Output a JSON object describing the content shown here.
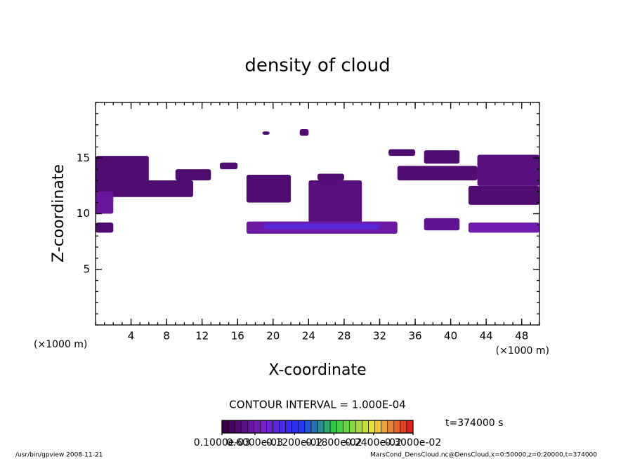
{
  "chart_data": {
    "type": "contour",
    "title": "density of cloud",
    "xlabel": "X-coordinate",
    "ylabel": "Z-coordinate",
    "xunit": "(×1000 m)",
    "yunit": "(×1000 m)",
    "xlim": [
      0,
      50
    ],
    "ylim": [
      0,
      20
    ],
    "xticks": [
      4,
      8,
      12,
      16,
      20,
      24,
      28,
      32,
      36,
      40,
      44,
      48
    ],
    "yticks": [
      5,
      10,
      15
    ],
    "contour_interval": "CONTOUR INTERVAL = 1.000E-04",
    "time_label": "t=374000 s",
    "colormap": [
      "#3a0048",
      "#7a22c0",
      "#2030ff",
      "#30d040",
      "#f0e040",
      "#e02020"
    ],
    "clim": [
      0.1,
      3.0
    ],
    "colorbar_ticks": [
      {
        "value": 0.1,
        "label": "0.1000e-03"
      },
      {
        "value": 0.6,
        "label": "0.6000e-03"
      },
      {
        "value": 1.2,
        "label": "0.1200e-02"
      },
      {
        "value": 1.8,
        "label": "0.1800e-02"
      },
      {
        "value": 2.4,
        "label": "0.2400e-02"
      },
      {
        "value": 3.0,
        "label": "0.3000e-02"
      }
    ],
    "regions": [
      {
        "x": [
          0,
          6
        ],
        "z": [
          12.5,
          15.2
        ],
        "value": 0.3
      },
      {
        "x": [
          0,
          11
        ],
        "z": [
          11.5,
          13
        ],
        "value": 0.3
      },
      {
        "x": [
          0,
          2
        ],
        "z": [
          10,
          12
        ],
        "value": 0.5
      },
      {
        "x": [
          0,
          2
        ],
        "z": [
          8.3,
          9.2
        ],
        "value": 0.3
      },
      {
        "x": [
          9,
          13
        ],
        "z": [
          13,
          14
        ],
        "value": 0.3
      },
      {
        "x": [
          14,
          16
        ],
        "z": [
          14,
          14.6
        ],
        "value": 0.3
      },
      {
        "x": [
          17,
          22
        ],
        "z": [
          11,
          13.5
        ],
        "value": 0.3
      },
      {
        "x": [
          24,
          30
        ],
        "z": [
          9.2,
          13
        ],
        "value": 0.35
      },
      {
        "x": [
          25,
          28
        ],
        "z": [
          13,
          13.6
        ],
        "value": 0.3
      },
      {
        "x": [
          17,
          34
        ],
        "z": [
          8.2,
          9.3
        ],
        "value": 0.55
      },
      {
        "x": [
          19,
          32
        ],
        "z": [
          8.6,
          9.1
        ],
        "value": 0.9
      },
      {
        "x": [
          37,
          41
        ],
        "z": [
          8.5,
          9.6
        ],
        "value": 0.45
      },
      {
        "x": [
          42,
          50
        ],
        "z": [
          8.3,
          9.2
        ],
        "value": 0.6
      },
      {
        "x": [
          42,
          50
        ],
        "z": [
          10.8,
          12.5
        ],
        "value": 0.3
      },
      {
        "x": [
          43,
          50
        ],
        "z": [
          12.5,
          15.3
        ],
        "value": 0.35
      },
      {
        "x": [
          34,
          43
        ],
        "z": [
          13,
          14.3
        ],
        "value": 0.3
      },
      {
        "x": [
          37,
          41
        ],
        "z": [
          14.5,
          15.7
        ],
        "value": 0.3
      },
      {
        "x": [
          33,
          36
        ],
        "z": [
          15.2,
          15.8
        ],
        "value": 0.3
      },
      {
        "x": [
          23,
          24
        ],
        "z": [
          17,
          17.6
        ],
        "value": 0.3
      },
      {
        "x": [
          18.8,
          19.6
        ],
        "z": [
          17.1,
          17.4
        ],
        "value": 0.3
      }
    ],
    "footer_left": "/usr/bin/gpview  2008-11-21",
    "footer_right": "MarsCond_DensCloud.nc@DensCloud,x=0:50000,z=0:20000,t=374000"
  }
}
